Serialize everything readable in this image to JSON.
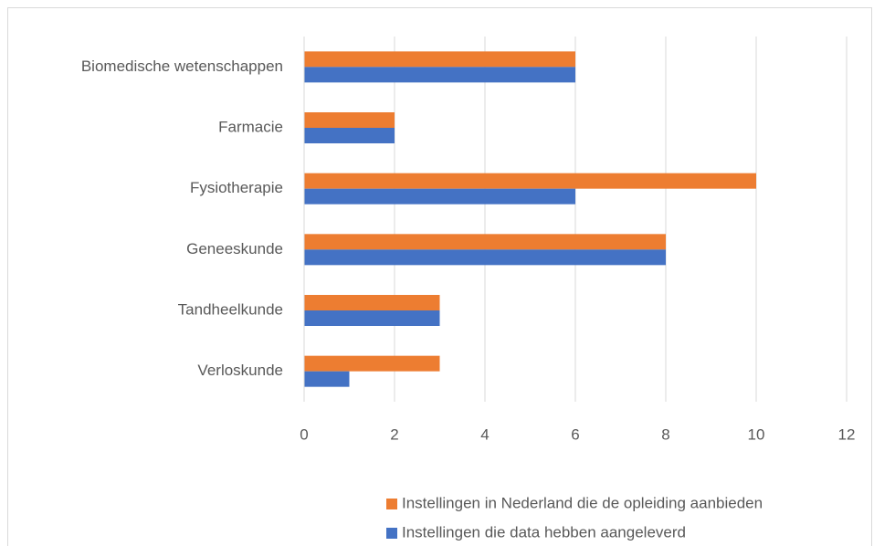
{
  "chart_data": {
    "type": "barh",
    "categories": [
      "Biomedische wetenschappen",
      "Farmacie",
      "Fysiotherapie",
      "Geneeskunde",
      "Tandheelkunde",
      "Verloskunde"
    ],
    "series": [
      {
        "name": "Instellingen in Nederland die de opleiding aanbieden",
        "color": "#ed7d31",
        "values": [
          6,
          2,
          10,
          8,
          3,
          3
        ]
      },
      {
        "name": "Instellingen die data hebben aangeleverd",
        "color": "#4472c4",
        "values": [
          6,
          2,
          6,
          8,
          3,
          1
        ]
      }
    ],
    "xlim": [
      0,
      12
    ],
    "xticks": [
      0,
      2,
      4,
      6,
      8,
      10,
      12
    ],
    "grid": true,
    "legend": "bottom"
  }
}
